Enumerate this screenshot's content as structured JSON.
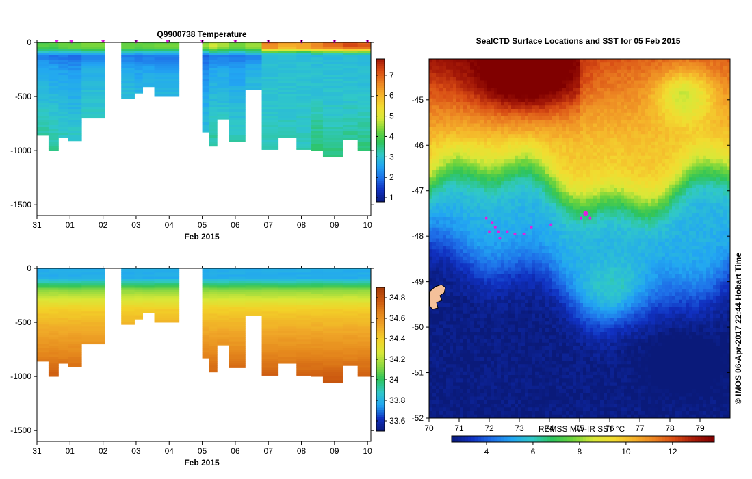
{
  "colors": {
    "sst_scale": [
      "#0a1a7a",
      "#1030c0",
      "#1e6ee8",
      "#22a6f2",
      "#30c8c8",
      "#2ec45a",
      "#6fd43c",
      "#d8e838",
      "#f2dc30",
      "#f5b22a",
      "#ec8422",
      "#d84c14",
      "#a61a08",
      "#800000"
    ],
    "temp_scale": [
      "#0a1a7a",
      "#1030c0",
      "#1e6ee8",
      "#22a6f2",
      "#30c8c8",
      "#2ec45a",
      "#6fd43c",
      "#d8e838",
      "#f2dc30",
      "#f5b22a",
      "#ec8422",
      "#d84c14",
      "#a61a08"
    ],
    "sal_scale": [
      "#0a1a7a",
      "#1030c0",
      "#22a6f2",
      "#30c8c8",
      "#2ec45a",
      "#8cd840",
      "#d8e838",
      "#f2d228",
      "#f0a828",
      "#e4861c",
      "#cc5a10",
      "#a83a06"
    ],
    "marker": "#e020e0",
    "land": "#f4c09a"
  },
  "chart_data": [
    {
      "type": "heatmap",
      "title": "Q9900738  Temperature",
      "xlabel": "Feb 2015",
      "ylabel": "",
      "x_ticks": [
        "31",
        "01",
        "02",
        "03",
        "04",
        "05",
        "06",
        "07",
        "08",
        "09",
        "10"
      ],
      "x_range": [
        0,
        10.1
      ],
      "y_ticks": [
        0,
        -500,
        -1000,
        -1500
      ],
      "y_range": [
        -1600,
        0
      ],
      "colorbar": {
        "ticks": [
          1,
          2,
          3,
          4,
          5,
          6,
          7
        ],
        "range": [
          0.8,
          7.8
        ]
      },
      "profiles": [
        {
          "start": 0.0,
          "end": 0.35,
          "depth": 860,
          "surface": 4.0
        },
        {
          "start": 0.35,
          "end": 0.65,
          "depth": 1000,
          "surface": 4.0
        },
        {
          "start": 0.65,
          "end": 0.95,
          "depth": 880,
          "surface": 4.2
        },
        {
          "start": 0.95,
          "end": 1.35,
          "depth": 910,
          "surface": 4.2
        },
        {
          "start": 1.35,
          "end": 2.05,
          "depth": 700,
          "surface": 4.3
        },
        {
          "start": 2.55,
          "end": 2.95,
          "depth": 520,
          "surface": 4.2
        },
        {
          "start": 2.95,
          "end": 3.2,
          "depth": 470,
          "surface": 4.2
        },
        {
          "start": 3.2,
          "end": 3.55,
          "depth": 410,
          "surface": 4.2
        },
        {
          "start": 3.55,
          "end": 4.3,
          "depth": 500,
          "surface": 4.3
        },
        {
          "start": 5.0,
          "end": 5.2,
          "depth": 830,
          "surface": 4.5
        },
        {
          "start": 5.2,
          "end": 5.45,
          "depth": 960,
          "surface": 4.8
        },
        {
          "start": 5.45,
          "end": 5.8,
          "depth": 710,
          "surface": 4.6
        },
        {
          "start": 5.8,
          "end": 6.3,
          "depth": 920,
          "surface": 4.4
        },
        {
          "start": 6.3,
          "end": 6.8,
          "depth": 440,
          "surface": 4.6
        },
        {
          "start": 6.8,
          "end": 7.3,
          "depth": 990,
          "surface": 6.6
        },
        {
          "start": 7.3,
          "end": 7.85,
          "depth": 880,
          "surface": 6.2
        },
        {
          "start": 7.85,
          "end": 8.3,
          "depth": 990,
          "surface": 6.3
        },
        {
          "start": 8.3,
          "end": 8.65,
          "depth": 1000,
          "surface": 6.6
        },
        {
          "start": 8.65,
          "end": 9.25,
          "depth": 1060,
          "surface": 6.8
        },
        {
          "start": 9.25,
          "end": 9.7,
          "depth": 900,
          "surface": 7.2
        },
        {
          "start": 9.7,
          "end": 10.1,
          "depth": 1000,
          "surface": 7.0
        }
      ],
      "markers": [
        0.6,
        1.05,
        2.0,
        3.0,
        3.95,
        5.0,
        6.0,
        7.0,
        8.0,
        9.0,
        10.0
      ]
    },
    {
      "type": "heatmap",
      "title": "",
      "xlabel": "Feb 2015",
      "ylabel": "",
      "x_ticks": [
        "31",
        "01",
        "02",
        "03",
        "04",
        "05",
        "06",
        "07",
        "08",
        "09",
        "10"
      ],
      "x_range": [
        0,
        10.1
      ],
      "y_ticks": [
        0,
        -500,
        -1000,
        -1500
      ],
      "y_range": [
        -1600,
        0
      ],
      "colorbar": {
        "ticks": [
          "33.6",
          "33.8",
          "34",
          "34.2",
          "34.4",
          "34.6",
          "34.8"
        ],
        "tick_values": [
          33.6,
          33.8,
          34.0,
          34.2,
          34.4,
          34.6,
          34.8
        ],
        "range": [
          33.5,
          34.9
        ]
      },
      "profiles": [
        {
          "start": 0.0,
          "end": 0.35,
          "depth": 860
        },
        {
          "start": 0.35,
          "end": 0.65,
          "depth": 1000
        },
        {
          "start": 0.65,
          "end": 0.95,
          "depth": 880
        },
        {
          "start": 0.95,
          "end": 1.35,
          "depth": 910
        },
        {
          "start": 1.35,
          "end": 2.05,
          "depth": 700
        },
        {
          "start": 2.55,
          "end": 2.95,
          "depth": 520
        },
        {
          "start": 2.95,
          "end": 3.2,
          "depth": 470
        },
        {
          "start": 3.2,
          "end": 3.55,
          "depth": 410
        },
        {
          "start": 3.55,
          "end": 4.3,
          "depth": 500
        },
        {
          "start": 5.0,
          "end": 5.2,
          "depth": 830
        },
        {
          "start": 5.2,
          "end": 5.45,
          "depth": 960
        },
        {
          "start": 5.45,
          "end": 5.8,
          "depth": 710
        },
        {
          "start": 5.8,
          "end": 6.3,
          "depth": 920
        },
        {
          "start": 6.3,
          "end": 6.8,
          "depth": 440
        },
        {
          "start": 6.8,
          "end": 7.3,
          "depth": 990
        },
        {
          "start": 7.3,
          "end": 7.85,
          "depth": 880
        },
        {
          "start": 7.85,
          "end": 8.3,
          "depth": 990
        },
        {
          "start": 8.3,
          "end": 8.65,
          "depth": 1000
        },
        {
          "start": 8.65,
          "end": 9.25,
          "depth": 1060
        },
        {
          "start": 9.25,
          "end": 9.7,
          "depth": 900
        },
        {
          "start": 9.7,
          "end": 10.1,
          "depth": 1000
        }
      ]
    },
    {
      "type": "heatmap",
      "title": "SealCTD Surface Locations and SST for 05 Feb 2015",
      "xlabel": "",
      "ylabel": "",
      "x_ticks": [
        "70",
        "71",
        "72",
        "73",
        "74",
        "75",
        "76",
        "77",
        "78",
        "79"
      ],
      "x_range": [
        70,
        80
      ],
      "y_ticks": [
        "-45",
        "-46",
        "-47",
        "-48",
        "-49",
        "-50",
        "-51",
        "-52"
      ],
      "y_range": [
        -52,
        -44.1
      ],
      "colorbar": {
        "label": "REMSS MW-IR SST °C",
        "ticks": [
          "4",
          "6",
          "8",
          "10",
          "12"
        ],
        "tick_values": [
          4,
          6,
          8,
          10,
          12
        ],
        "range": [
          2.5,
          13.8
        ]
      },
      "seal_positions": [
        {
          "lon": 71.9,
          "lat": -47.6
        },
        {
          "lon": 72.1,
          "lat": -47.7
        },
        {
          "lon": 72.0,
          "lat": -47.9
        },
        {
          "lon": 72.2,
          "lat": -47.8
        },
        {
          "lon": 72.3,
          "lat": -47.9
        },
        {
          "lon": 72.35,
          "lat": -48.05
        },
        {
          "lon": 72.6,
          "lat": -47.9
        },
        {
          "lon": 72.85,
          "lat": -47.95
        },
        {
          "lon": 73.15,
          "lat": -47.95
        },
        {
          "lon": 73.4,
          "lat": -47.8
        },
        {
          "lon": 74.05,
          "lat": -47.75
        },
        {
          "lon": 75.05,
          "lat": -47.6
        },
        {
          "lon": 75.2,
          "lat": -47.5
        },
        {
          "lon": 75.35,
          "lat": -47.6
        }
      ]
    }
  ],
  "credit": "© IMOS 06-Apr-2017 22:44 Hobart Time"
}
